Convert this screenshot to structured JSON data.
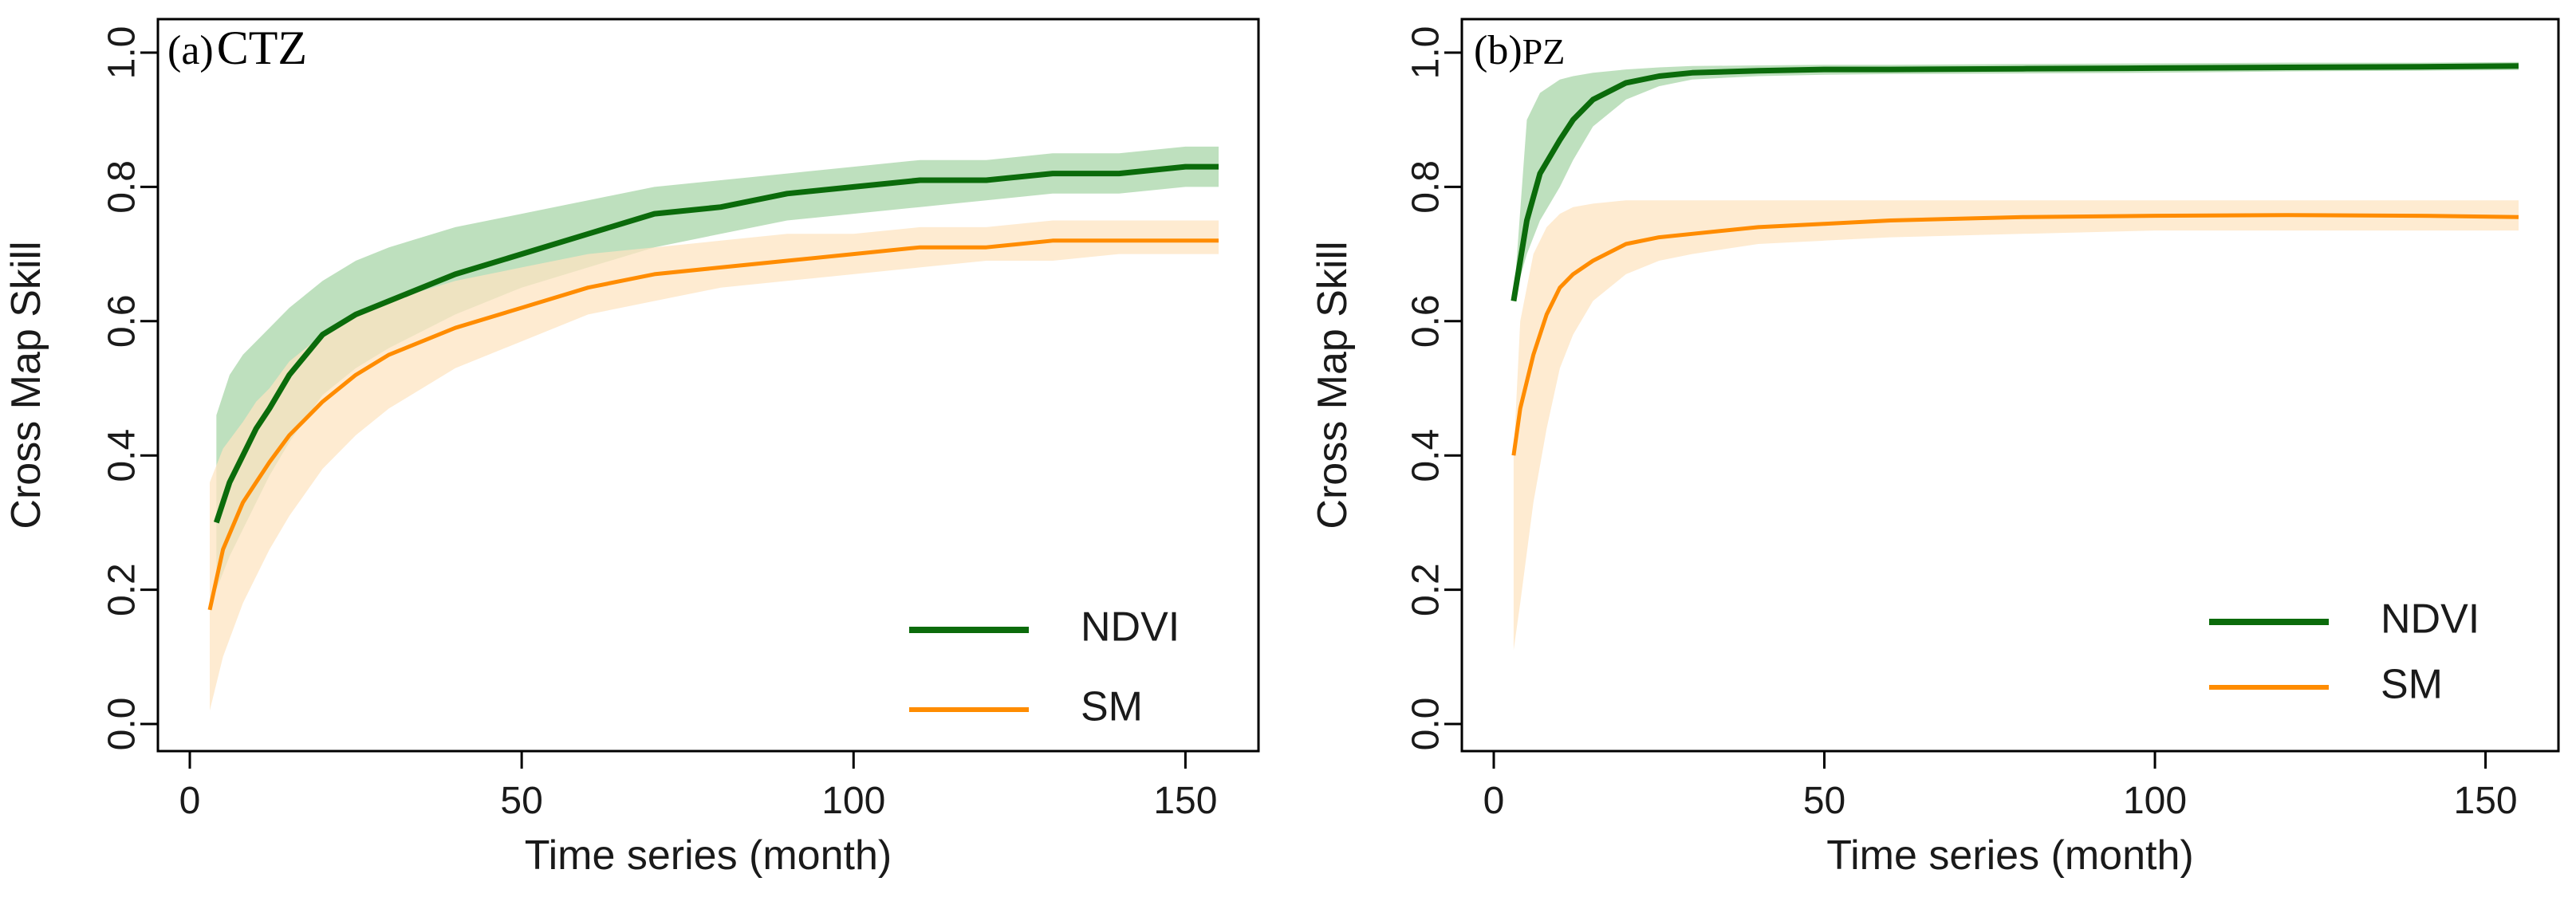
{
  "chart_data": [
    {
      "type": "line",
      "panel_letter": "(a)",
      "title": "CTZ",
      "xlabel": "Time series (month)",
      "ylabel": "Cross Map Skill",
      "xlim": [
        0,
        160
      ],
      "ylim": [
        0.0,
        1.0
      ],
      "xticks": [
        0,
        50,
        100,
        150
      ],
      "yticks": [
        0.0,
        0.2,
        0.4,
        0.6,
        0.8,
        1.0
      ],
      "legend_position": "bottom-right",
      "series": [
        {
          "name": "NDVI",
          "color": "#0b6b0b",
          "band_color": "#a8d5a8",
          "x": [
            4,
            6,
            8,
            10,
            12,
            15,
            20,
            25,
            30,
            40,
            50,
            60,
            70,
            80,
            90,
            100,
            110,
            120,
            130,
            140,
            150,
            155
          ],
          "values": [
            0.3,
            0.36,
            0.4,
            0.44,
            0.47,
            0.52,
            0.58,
            0.61,
            0.63,
            0.67,
            0.7,
            0.73,
            0.76,
            0.77,
            0.79,
            0.8,
            0.81,
            0.81,
            0.82,
            0.82,
            0.83,
            0.83
          ],
          "lower": [
            0.2,
            0.25,
            0.29,
            0.33,
            0.37,
            0.42,
            0.49,
            0.53,
            0.56,
            0.61,
            0.65,
            0.68,
            0.71,
            0.73,
            0.75,
            0.76,
            0.77,
            0.78,
            0.79,
            0.79,
            0.8,
            0.8
          ],
          "upper": [
            0.46,
            0.52,
            0.55,
            0.57,
            0.59,
            0.62,
            0.66,
            0.69,
            0.71,
            0.74,
            0.76,
            0.78,
            0.8,
            0.81,
            0.82,
            0.83,
            0.84,
            0.84,
            0.85,
            0.85,
            0.86,
            0.86
          ]
        },
        {
          "name": "SM",
          "color": "#ff8c00",
          "band_color": "#fde4c2",
          "x": [
            3,
            5,
            8,
            10,
            12,
            15,
            20,
            25,
            30,
            40,
            50,
            60,
            70,
            80,
            90,
            100,
            110,
            120,
            130,
            140,
            150,
            155
          ],
          "values": [
            0.17,
            0.26,
            0.33,
            0.36,
            0.39,
            0.43,
            0.48,
            0.52,
            0.55,
            0.59,
            0.62,
            0.65,
            0.67,
            0.68,
            0.69,
            0.7,
            0.71,
            0.71,
            0.72,
            0.72,
            0.72,
            0.72
          ],
          "lower": [
            0.02,
            0.1,
            0.18,
            0.22,
            0.26,
            0.31,
            0.38,
            0.43,
            0.47,
            0.53,
            0.57,
            0.61,
            0.63,
            0.65,
            0.66,
            0.67,
            0.68,
            0.69,
            0.69,
            0.7,
            0.7,
            0.7
          ],
          "upper": [
            0.36,
            0.41,
            0.45,
            0.48,
            0.5,
            0.54,
            0.58,
            0.61,
            0.63,
            0.66,
            0.68,
            0.7,
            0.71,
            0.72,
            0.73,
            0.73,
            0.74,
            0.74,
            0.75,
            0.75,
            0.75,
            0.75
          ]
        }
      ]
    },
    {
      "type": "line",
      "panel_letter": "(b)",
      "title": "PZ",
      "xlabel": "Time series (month)",
      "ylabel": "Cross Map Skill",
      "xlim": [
        0,
        160
      ],
      "ylim": [
        0.0,
        1.0
      ],
      "xticks": [
        0,
        50,
        100,
        150
      ],
      "yticks": [
        0.0,
        0.2,
        0.4,
        0.6,
        0.8,
        1.0
      ],
      "legend_position": "bottom-right",
      "series": [
        {
          "name": "NDVI",
          "color": "#0b6b0b",
          "band_color": "#a8d5a8",
          "x": [
            3,
            5,
            7,
            10,
            12,
            15,
            20,
            25,
            30,
            40,
            50,
            60,
            80,
            100,
            120,
            140,
            155
          ],
          "values": [
            0.63,
            0.75,
            0.82,
            0.87,
            0.9,
            0.93,
            0.955,
            0.965,
            0.97,
            0.973,
            0.975,
            0.975,
            0.976,
            0.977,
            0.978,
            0.979,
            0.98
          ],
          "lower": [
            0.63,
            0.7,
            0.75,
            0.8,
            0.84,
            0.89,
            0.93,
            0.95,
            0.96,
            0.965,
            0.967,
            0.968,
            0.969,
            0.97,
            0.972,
            0.973,
            0.974
          ],
          "upper": [
            0.63,
            0.9,
            0.94,
            0.96,
            0.965,
            0.97,
            0.975,
            0.978,
            0.98,
            0.981,
            0.982,
            0.982,
            0.983,
            0.984,
            0.985,
            0.985,
            0.986
          ]
        },
        {
          "name": "SM",
          "color": "#ff8c00",
          "band_color": "#fde4c2",
          "x": [
            3,
            4,
            6,
            8,
            10,
            12,
            15,
            20,
            25,
            30,
            40,
            50,
            60,
            80,
            100,
            120,
            140,
            155
          ],
          "values": [
            0.4,
            0.47,
            0.55,
            0.61,
            0.65,
            0.67,
            0.69,
            0.715,
            0.725,
            0.73,
            0.74,
            0.745,
            0.75,
            0.755,
            0.757,
            0.758,
            0.757,
            0.755
          ],
          "lower": [
            0.11,
            0.18,
            0.33,
            0.44,
            0.53,
            0.58,
            0.63,
            0.67,
            0.69,
            0.7,
            0.715,
            0.72,
            0.725,
            0.73,
            0.735,
            0.735,
            0.735,
            0.735
          ],
          "upper": [
            0.4,
            0.6,
            0.7,
            0.74,
            0.76,
            0.77,
            0.775,
            0.78,
            0.78,
            0.78,
            0.78,
            0.78,
            0.78,
            0.78,
            0.78,
            0.78,
            0.78,
            0.78
          ]
        }
      ]
    }
  ]
}
